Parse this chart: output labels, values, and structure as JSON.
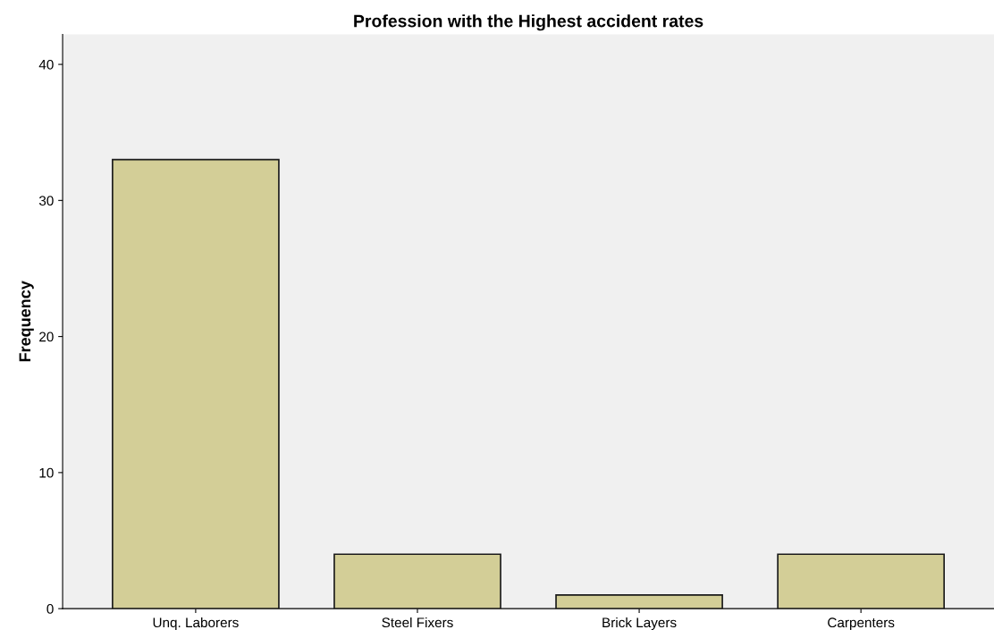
{
  "chart_data": {
    "type": "bar",
    "title": "Profession with the Highest accident rates",
    "ylabel": "Frequency",
    "categories": [
      "Unq. Laborers",
      "Steel Fixers",
      "Brick Layers",
      "Carpenters"
    ],
    "values": [
      33,
      4,
      1,
      4
    ],
    "color": "#d3ce97",
    "ylim": [
      0,
      42.2
    ],
    "yticks": [
      0,
      10,
      20,
      30,
      40
    ],
    "grid": false
  }
}
